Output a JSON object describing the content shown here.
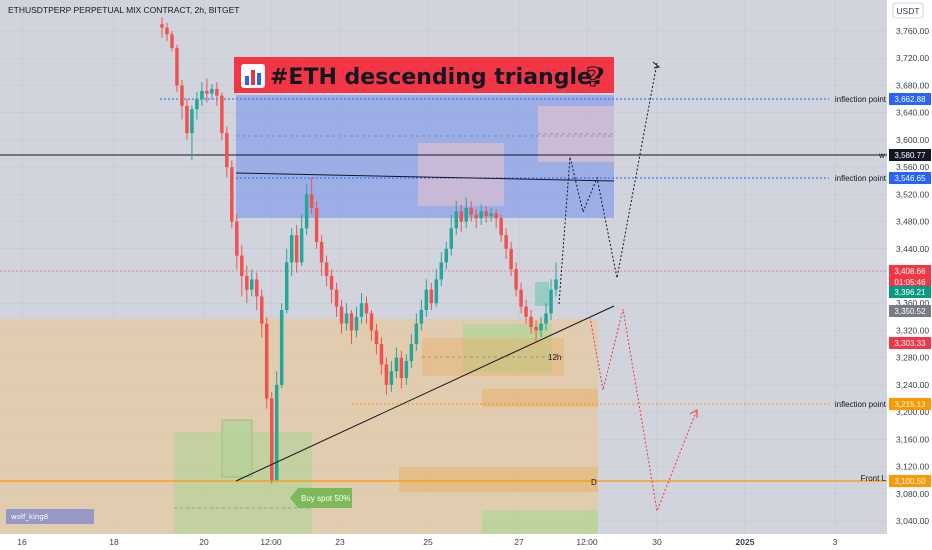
{
  "header": {
    "title": "ETHUSDTPERP PERPETUAL MIX CONTRACT, 2h, BITGET",
    "currency": "USDT"
  },
  "banner": {
    "text": "#ETH descending triangle?",
    "chart_icon": "bar-chart-icon",
    "question_icon": "question-mark-icon"
  },
  "colors": {
    "up": "#26a69a",
    "down": "#ef5350",
    "banner_bg": "#f23645",
    "blue_zone": "#7b93db",
    "orange_zone": "#e8c79b",
    "green_zone": "#a5c98a",
    "purple_zone": "#d7b3c8",
    "blue_line": "#2962ff",
    "orange_line": "#ff9800"
  },
  "chart_data": {
    "type": "candlestick",
    "ylim": [
      3020,
      3790
    ],
    "y_ticks": [
      3760,
      3720,
      3680,
      3640,
      3600,
      3560,
      3520,
      3480,
      3440,
      3360,
      3320,
      3280,
      3240,
      3200,
      3160,
      3120,
      3080,
      3040
    ],
    "x_ticks": [
      "16",
      "18",
      "20",
      "12:00",
      "23",
      "25",
      "27",
      "12:00",
      "30",
      "2025",
      "3"
    ],
    "grid": true,
    "price_labels": [
      {
        "key": "inflection_1",
        "value": "3,662.88",
        "color": "#2962ff",
        "y": 3662.88,
        "line": "dotted-blue"
      },
      {
        "key": "black_line",
        "value": "3,580.77",
        "color": "#131722",
        "y": 3580.77,
        "line": "solid-black"
      },
      {
        "key": "inflection_2",
        "value": "3,546.65",
        "color": "#2962ff",
        "y": 3546.65,
        "line": "dotted-blue"
      },
      {
        "key": "last_price",
        "value": "3,408.66",
        "color": "#f23645",
        "y": 3408.66,
        "line": "dotted-red"
      },
      {
        "key": "countdown",
        "value": "01:05:46",
        "color": "#f23645",
        "y": 3400,
        "line": "none"
      },
      {
        "key": "green_level",
        "value": "3,396.21",
        "color": "#089981",
        "y": 3392,
        "line": "none"
      },
      {
        "key": "gray_level",
        "value": "3,350.52",
        "color": "#787b86",
        "y": 3350.52,
        "line": "none"
      },
      {
        "key": "red_level",
        "value": "3,303.33",
        "color": "#f23645",
        "y": 3303.33,
        "line": "none"
      },
      {
        "key": "inflection_3",
        "value": "3,215.13",
        "color": "#ff9800",
        "y": 3215.13,
        "line": "dotted-orange"
      },
      {
        "key": "front_line",
        "value": "3,100.50",
        "color": "#ff9800",
        "y": 3100.5,
        "line": "solid-orange"
      }
    ],
    "annotations": {
      "inflection_label": "inflection point",
      "front_label": "Front L",
      "buy_label": "Buy spot 50%",
      "tf_label": "12h",
      "w_label": "w",
      "d_label": "D",
      "author": "wolf_king8"
    },
    "candles": [
      [
        3770,
        3765,
        3780,
        3750
      ],
      [
        3765,
        3755,
        3772,
        3745
      ],
      [
        3755,
        3735,
        3760,
        3730
      ],
      [
        3735,
        3680,
        3740,
        3670
      ],
      [
        3680,
        3650,
        3688,
        3630
      ],
      [
        3650,
        3610,
        3660,
        3600
      ],
      [
        3610,
        3645,
        3650,
        3570
      ],
      [
        3645,
        3660,
        3670,
        3630
      ],
      [
        3660,
        3672,
        3685,
        3650
      ],
      [
        3672,
        3668,
        3690,
        3655
      ],
      [
        3668,
        3675,
        3682,
        3660
      ],
      [
        3675,
        3665,
        3685,
        3650
      ],
      [
        3665,
        3610,
        3670,
        3600
      ],
      [
        3610,
        3560,
        3620,
        3545
      ],
      [
        3560,
        3480,
        3570,
        3470
      ],
      [
        3480,
        3430,
        3490,
        3410
      ],
      [
        3430,
        3400,
        3445,
        3370
      ],
      [
        3400,
        3380,
        3415,
        3360
      ],
      [
        3380,
        3395,
        3410,
        3370
      ],
      [
        3395,
        3370,
        3405,
        3350
      ],
      [
        3370,
        3330,
        3380,
        3310
      ],
      [
        3330,
        3220,
        3340,
        3205
      ],
      [
        3220,
        3100,
        3230,
        3095
      ],
      [
        3100,
        3240,
        3260,
        3100
      ],
      [
        3240,
        3350,
        3360,
        3235
      ],
      [
        3350,
        3420,
        3440,
        3345
      ],
      [
        3420,
        3460,
        3470,
        3400
      ],
      [
        3460,
        3420,
        3475,
        3405
      ],
      [
        3420,
        3470,
        3490,
        3415
      ],
      [
        3470,
        3520,
        3535,
        3460
      ],
      [
        3520,
        3500,
        3545,
        3490
      ],
      [
        3500,
        3450,
        3510,
        3440
      ],
      [
        3450,
        3420,
        3460,
        3400
      ],
      [
        3420,
        3400,
        3430,
        3385
      ],
      [
        3400,
        3380,
        3410,
        3360
      ],
      [
        3380,
        3355,
        3390,
        3340
      ],
      [
        3355,
        3330,
        3365,
        3315
      ],
      [
        3330,
        3345,
        3360,
        3320
      ],
      [
        3345,
        3320,
        3350,
        3300
      ],
      [
        3320,
        3340,
        3355,
        3310
      ],
      [
        3340,
        3360,
        3375,
        3330
      ],
      [
        3360,
        3345,
        3370,
        3330
      ],
      [
        3345,
        3320,
        3350,
        3305
      ],
      [
        3320,
        3300,
        3330,
        3285
      ],
      [
        3300,
        3270,
        3310,
        3255
      ],
      [
        3270,
        3240,
        3280,
        3225
      ],
      [
        3240,
        3260,
        3275,
        3230
      ],
      [
        3260,
        3280,
        3295,
        3250
      ],
      [
        3280,
        3250,
        3290,
        3235
      ],
      [
        3250,
        3275,
        3285,
        3240
      ],
      [
        3275,
        3300,
        3315,
        3265
      ],
      [
        3300,
        3330,
        3345,
        3290
      ],
      [
        3330,
        3350,
        3365,
        3320
      ],
      [
        3350,
        3380,
        3395,
        3340
      ],
      [
        3380,
        3360,
        3390,
        3350
      ],
      [
        3360,
        3395,
        3410,
        3355
      ],
      [
        3395,
        3420,
        3435,
        3385
      ],
      [
        3420,
        3440,
        3450,
        3410
      ],
      [
        3440,
        3470,
        3490,
        3430
      ],
      [
        3470,
        3495,
        3510,
        3460
      ],
      [
        3495,
        3480,
        3505,
        3465
      ],
      [
        3480,
        3500,
        3515,
        3470
      ],
      [
        3500,
        3490,
        3510,
        3480
      ],
      [
        3490,
        3485,
        3498,
        3470
      ],
      [
        3485,
        3495,
        3505,
        3475
      ],
      [
        3495,
        3488,
        3502,
        3478
      ],
      [
        3488,
        3492,
        3500,
        3480
      ],
      [
        3492,
        3485,
        3498,
        3470
      ],
      [
        3485,
        3460,
        3490,
        3450
      ],
      [
        3460,
        3440,
        3470,
        3425
      ],
      [
        3440,
        3410,
        3450,
        3400
      ],
      [
        3410,
        3380,
        3420,
        3370
      ],
      [
        3380,
        3355,
        3390,
        3345
      ],
      [
        3355,
        3340,
        3365,
        3330
      ],
      [
        3340,
        3325,
        3350,
        3315
      ],
      [
        3325,
        3320,
        3335,
        3305
      ],
      [
        3320,
        3330,
        3340,
        3310
      ],
      [
        3330,
        3345,
        3360,
        3320
      ],
      [
        3345,
        3380,
        3395,
        3335
      ],
      [
        3380,
        3395,
        3420,
        3370
      ]
    ]
  }
}
